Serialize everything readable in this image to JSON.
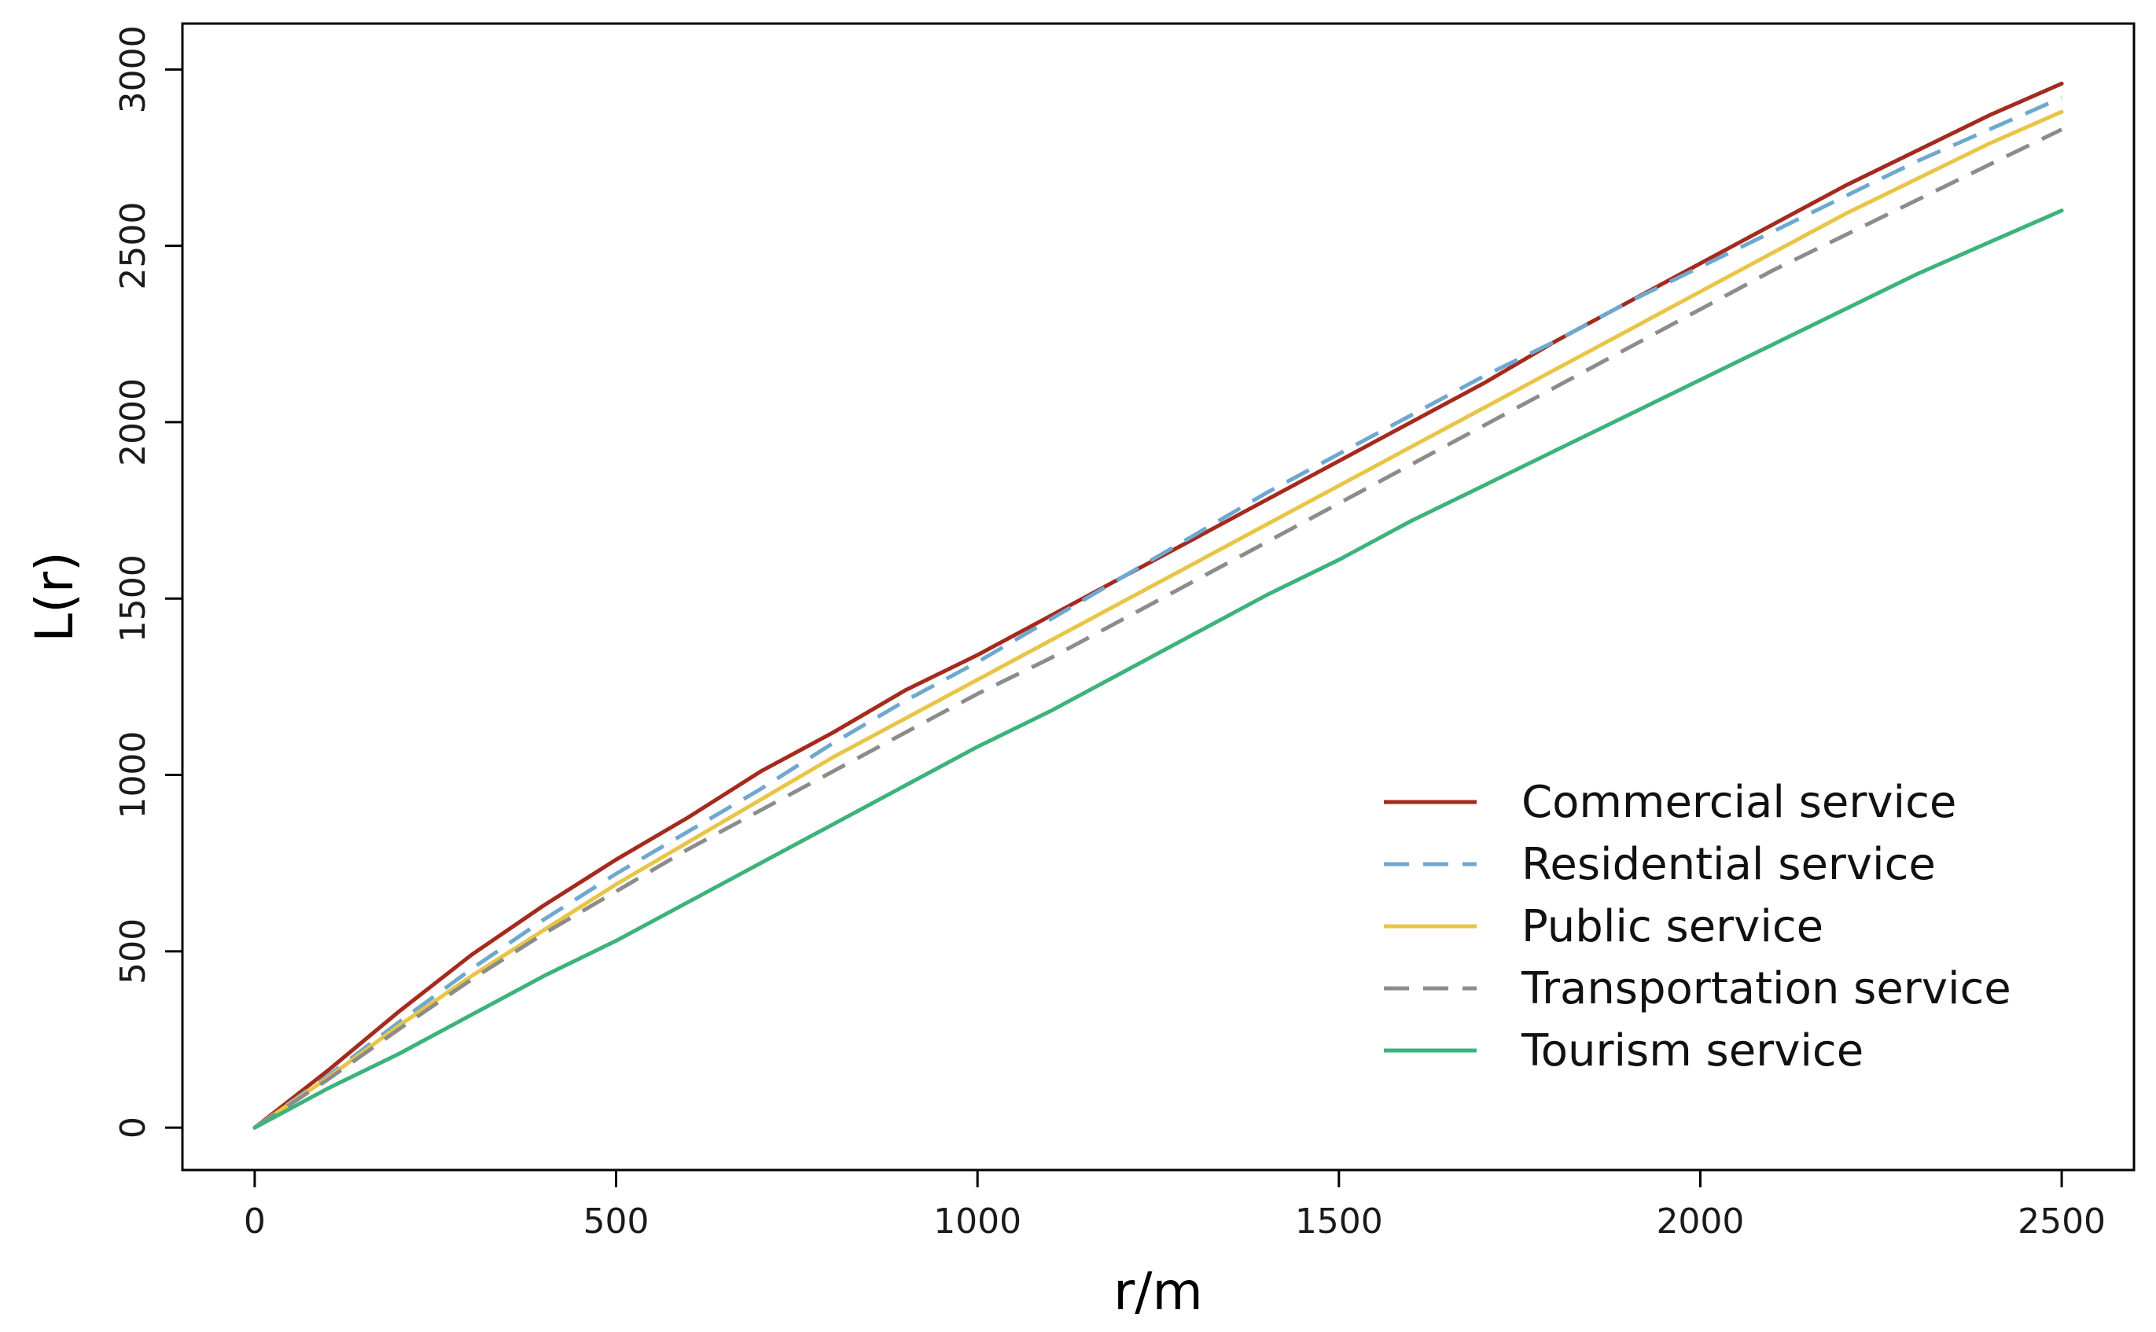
{
  "chart_data": {
    "type": "line",
    "title": "",
    "xlabel": "r/m",
    "ylabel": "L(r)",
    "xlim": [
      -100,
      2600
    ],
    "ylim": [
      -120,
      3130
    ],
    "x_ticks": [
      0,
      500,
      1000,
      1500,
      2000,
      2500
    ],
    "y_ticks": [
      0,
      500,
      1000,
      1500,
      2000,
      2500,
      3000
    ],
    "x_tick_labels": [
      "0",
      "500",
      "1000",
      "1500",
      "2000",
      "2500"
    ],
    "y_tick_labels": [
      "0",
      "500",
      "1000",
      "1500",
      "2000",
      "2500",
      "3000"
    ],
    "grid": false,
    "legend_position": "bottom-right",
    "series": [
      {
        "name": "Commercial service",
        "color": "#a52a1e",
        "dash": "solid",
        "x": [
          0,
          100,
          200,
          300,
          400,
          500,
          600,
          700,
          800,
          900,
          1000,
          1100,
          1200,
          1300,
          1400,
          1500,
          1600,
          1700,
          1800,
          1900,
          2000,
          2100,
          2200,
          2300,
          2400,
          2500
        ],
        "y": [
          0,
          160,
          330,
          490,
          630,
          760,
          880,
          1010,
          1120,
          1240,
          1340,
          1450,
          1560,
          1670,
          1780,
          1890,
          2000,
          2110,
          2230,
          2340,
          2450,
          2560,
          2670,
          2770,
          2870,
          2960
        ]
      },
      {
        "name": "Residential service",
        "color": "#6fa8cf",
        "dash": "dashed",
        "x": [
          0,
          100,
          200,
          300,
          400,
          500,
          600,
          700,
          800,
          900,
          1000,
          1100,
          1200,
          1300,
          1400,
          1500,
          1600,
          1700,
          1800,
          1900,
          2000,
          2100,
          2200,
          2300,
          2400,
          2500
        ],
        "y": [
          0,
          145,
          300,
          450,
          590,
          720,
          840,
          960,
          1090,
          1210,
          1320,
          1440,
          1560,
          1680,
          1800,
          1910,
          2020,
          2130,
          2230,
          2340,
          2440,
          2540,
          2640,
          2740,
          2830,
          2920
        ]
      },
      {
        "name": "Public service",
        "color": "#e8c547",
        "dash": "solid",
        "x": [
          0,
          100,
          200,
          300,
          400,
          500,
          600,
          700,
          800,
          900,
          1000,
          1100,
          1200,
          1300,
          1400,
          1500,
          1600,
          1700,
          1800,
          1900,
          2000,
          2100,
          2200,
          2300,
          2400,
          2500
        ],
        "y": [
          0,
          140,
          290,
          430,
          560,
          690,
          810,
          930,
          1050,
          1160,
          1270,
          1380,
          1490,
          1600,
          1710,
          1820,
          1930,
          2040,
          2150,
          2260,
          2370,
          2480,
          2590,
          2690,
          2790,
          2880
        ]
      },
      {
        "name": "Transportation service",
        "color": "#8c8c8c",
        "dash": "dashed",
        "x": [
          0,
          100,
          200,
          300,
          400,
          500,
          600,
          700,
          800,
          900,
          1000,
          1100,
          1200,
          1300,
          1400,
          1500,
          1600,
          1700,
          1800,
          1900,
          2000,
          2100,
          2200,
          2300,
          2400,
          2500
        ],
        "y": [
          0,
          135,
          280,
          420,
          550,
          670,
          790,
          900,
          1010,
          1120,
          1230,
          1330,
          1440,
          1550,
          1660,
          1770,
          1880,
          1990,
          2100,
          2210,
          2320,
          2430,
          2530,
          2630,
          2730,
          2830
        ]
      },
      {
        "name": "Tourism service",
        "color": "#3db37c",
        "dash": "solid",
        "x": [
          0,
          100,
          200,
          300,
          400,
          500,
          600,
          700,
          800,
          900,
          1000,
          1100,
          1200,
          1300,
          1400,
          1500,
          1600,
          1700,
          1800,
          1900,
          2000,
          2100,
          2200,
          2300,
          2400,
          2500
        ],
        "y": [
          0,
          110,
          210,
          320,
          430,
          530,
          640,
          750,
          860,
          970,
          1080,
          1180,
          1290,
          1400,
          1510,
          1610,
          1720,
          1820,
          1920,
          2020,
          2120,
          2220,
          2320,
          2420,
          2510,
          2600
        ]
      }
    ]
  }
}
